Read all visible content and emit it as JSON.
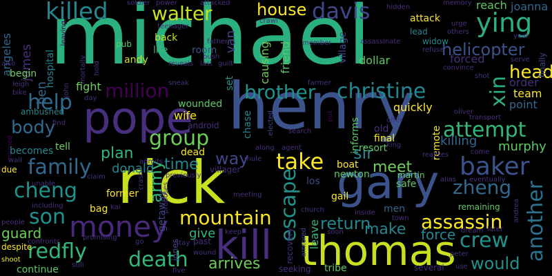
{
  "words": {
    "michael": "michael",
    "henry": "henry",
    "rick": "rick",
    "gary": "gary",
    "pope": "pope",
    "thomas": "thomas",
    "kill": "kill",
    "money": "money",
    "baker": "baker",
    "christine": "christine",
    "killed": "killed",
    "ying": "ying",
    "davis": "davis",
    "walter": "walter",
    "house": "house",
    "brother": "brother",
    "million": "million",
    "family": "family",
    "cheng": "cheng",
    "son": "son",
    "help": "help",
    "group": "group",
    "attempt": "attempt",
    "zheng": "zheng",
    "take": "take",
    "mountain": "mountain",
    "escape": "escape",
    "assassin": "assassin",
    "crew": "crew",
    "death": "death",
    "redfly": "redfly",
    "arrives": "arrives",
    "would": "would",
    "helicopter": "helicopter",
    "head": "head",
    "xin": "xin",
    "another": "another",
    "army": "army",
    "body": "body",
    "plan": "plan",
    "donald": "donald",
    "time": "time",
    "way": "way",
    "sir": "sir",
    "meet": "meet",
    "return": "return",
    "make": "make",
    "force": "force",
    "guard": "guard",
    "james": "james",
    "angeles": "angeles",
    "killing": "killing",
    "murphy": "murphy",
    "fight": "fight",
    "village": "village",
    "van": "van",
    "friend": "friend",
    "dollar": "dollar",
    "forced": "forced",
    "widow": "widow",
    "reach": "reach",
    "joanna": "joanna",
    "order": "order",
    "team": "team",
    "point": "point",
    "quickly": "quickly",
    "wife": "wife",
    "tell": "tell",
    "becomes": "becomes",
    "boat": "boat",
    "safe": "safe",
    "los": "los",
    "gail": "gail",
    "newton": "newton",
    "martin": "martin",
    "remaining": "remaining",
    "men": "men",
    "former": "former",
    "bag": "bag",
    "leave": "leave",
    "tribe": "tribe",
    "continue": "continue",
    "several": "several",
    "shoot": "shoot",
    "despite": "despite",
    "due": "due",
    "begin": "begin",
    "hospital": "hospital",
    "ben": "ben",
    "attack": "attack",
    "lead": "lead",
    "life": "life",
    "room": "room",
    "andy": "andy",
    "back": "back",
    "pub": "pub",
    "causing": "causing",
    "final": "final",
    "old": "old",
    "resort": "resort",
    "wounded": "wounded",
    "give": "give",
    "dead": "dead",
    "villager": "villager",
    "chase": "chase",
    "informs": "informs",
    "remote": "remote",
    "past": "past",
    "getaway": "getaway",
    "ambushed": "ambushed",
    "soldier": "soldier",
    "attacked": "attacked",
    "power": "power",
    "hidden": "hidden",
    "memory": "memory",
    "urge": "urge",
    "year": "year",
    "finally": "finally",
    "serve": "serve",
    "convince": "convince",
    "refuse": "refuse",
    "shot": "shot",
    "others": "others",
    "transport": "transport",
    "come": "come",
    "alias": "alias",
    "eventually": "eventually",
    "andrea": "andrea",
    "later": "later",
    "dream": "dream",
    "peter": "peter",
    "use": "use",
    "five": "five",
    "seeking": "seeking",
    "soon": "soon",
    "recovery": "recovery",
    "armored": "armored",
    "church": "church",
    "inside": "inside",
    "town": "town",
    "search": "search",
    "agent": "agent",
    "along": "along",
    "mule": "mule",
    "elected": "elected",
    "offer": "offer",
    "king": "king",
    "realizes": "realizes",
    "oliver": "oliver",
    "farmer": "farmer",
    "sneak": "sneak",
    "reveals": "reveals",
    "guilt": "guilt",
    "last": "last",
    "bush": "bush",
    "father": "father",
    "teenager": "teenager",
    "crawl": "crawl",
    "assassinate": "assassinate",
    "member": "member",
    "set": "set",
    "jones": "jones",
    "proposes": "proposes",
    "crash": "crash",
    "admits": "admits",
    "previously": "previously",
    "android": "android",
    "claim": "claim",
    "kai": "kai",
    "go": "go",
    "keep": "keep",
    "stay": "stay",
    "wound": "wound",
    "meeting": "meeting",
    "still": "still",
    "confronts": "confronts",
    "people": "people",
    "including": "including",
    "unable": "unable",
    "wall": "wall",
    "named": "named",
    "find": "find",
    "bike": "bike",
    "leigh": "leigh",
    "also": "also",
    "mortally": "mortally",
    "hold": "hold",
    "day": "day",
    "john": "john",
    "leaving": "leaving",
    "promising": "promising",
    "put": "put"
  }
}
